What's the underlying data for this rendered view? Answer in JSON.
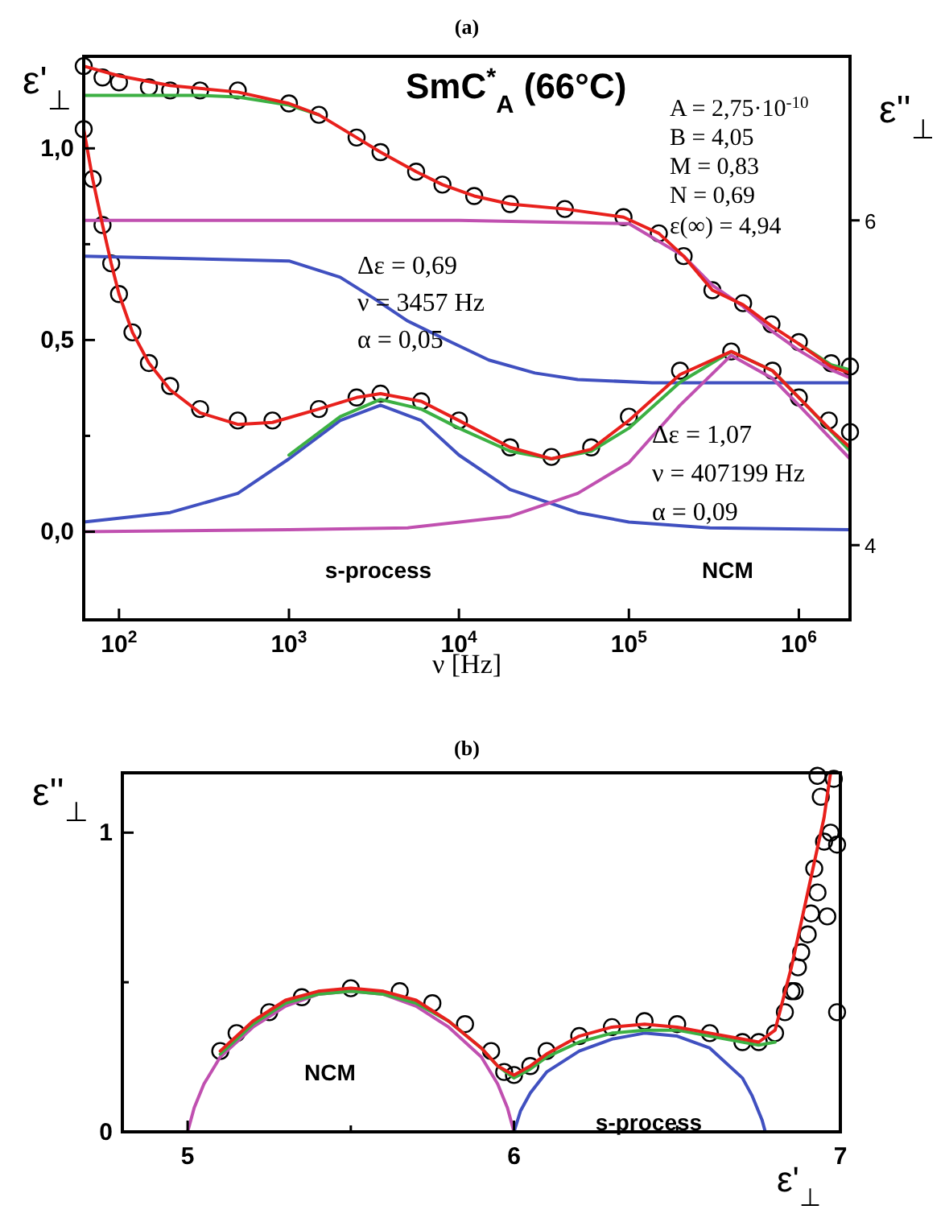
{
  "chart_data": [
    {
      "type": "line",
      "title": "(a)",
      "xlabel": "ν [Hz]",
      "ylabel": "ε'$_{⊥}$",
      "y2label": "ε''$_{⊥}$",
      "log": "x",
      "xlim": [
        62,
        2000000
      ],
      "xticks": [
        {
          "value": 100,
          "label": "10$^{2}$"
        },
        {
          "value": 1000,
          "label": "10$^{3}$"
        },
        {
          "value": 10000,
          "label": "10$^{4}$"
        },
        {
          "value": 100000,
          "label": "10$^{5}$"
        },
        {
          "value": 1000000,
          "label": "10$^{6}$"
        }
      ],
      "ylim": [
        -0.23,
        1.24
      ],
      "yticks": [
        {
          "value": 0,
          "label": "0,0"
        },
        {
          "value": 0.25,
          "label": null
        },
        {
          "value": 0.5,
          "label": "0,5"
        },
        {
          "value": 0.75,
          "label": null
        },
        {
          "value": 1,
          "label": "1,0"
        }
      ],
      "y2lim": [
        3.54,
        7.01
      ],
      "y2ticks": [
        4,
        6
      ],
      "annotations": [
        "SmC$^{*}$$_{A}$ (66°C)",
        "A = 2,75·10$^{-10}$",
        "B = 4,05",
        "M = 0,83",
        "N = 0,69",
        "ε(∞) = 4,94",
        "Δε = 0,69",
        "ν = 3457 Hz",
        "α = 0,05",
        "Δε = 1,07",
        "ν = 407199 Hz",
        "α = 0,09",
        "s-process",
        "NCM"
      ],
      "series": [
        {
          "type": "scatter",
          "marker": "circle",
          "color": "#000000",
          "axis": "y2",
          "x": [
            62,
            80,
            100,
            150,
            200,
            300,
            500,
            1000,
            1500,
            2500,
            3457,
            5600,
            8000,
            12300,
            20000,
            42000,
            93000,
            150000,
            210000,
            310000,
            470000,
            690000,
            1000000,
            1550000,
            2000000
          ],
          "values": [
            6.95,
            6.88,
            6.85,
            6.82,
            6.8,
            6.8,
            6.8,
            6.72,
            6.65,
            6.51,
            6.42,
            6.3,
            6.22,
            6.15,
            6.1,
            6.07,
            6.02,
            5.92,
            5.78,
            5.57,
            5.49,
            5.36,
            5.25,
            5.12,
            5.1
          ]
        },
        {
          "type": "scatter",
          "marker": "circle",
          "color": "#000000",
          "x": [
            62,
            70,
            80,
            90,
            100,
            120,
            150,
            200,
            300,
            500,
            800,
            1500,
            2500,
            3457,
            6000,
            10000,
            20000,
            35000,
            60000,
            100000,
            200000,
            400000,
            700000,
            1000000,
            1500000,
            2000000
          ],
          "values": [
            1.05,
            0.92,
            0.8,
            0.7,
            0.62,
            0.52,
            0.44,
            0.38,
            0.32,
            0.29,
            0.29,
            0.32,
            0.35,
            0.36,
            0.34,
            0.29,
            0.22,
            0.195,
            0.22,
            0.3,
            0.42,
            0.47,
            0.42,
            0.35,
            0.29,
            0.26
          ]
        },
        {
          "color": "#4050c0",
          "axis": "y2",
          "x": [
            62,
            1000,
            2000,
            3160,
            5000,
            9000,
            15000,
            28000,
            50000,
            137000,
            2000000
          ],
          "values": [
            5.78,
            5.75,
            5.65,
            5.52,
            5.38,
            5.25,
            5.14,
            5.06,
            5.02,
            5.0,
            5.0
          ]
        },
        {
          "color": "#c050b0",
          "axis": "y2",
          "x": [
            62,
            10000,
            100000,
            210000,
            310000,
            470000,
            690000,
            1000000,
            1550000,
            2000000
          ],
          "values": [
            6.0,
            6.0,
            5.98,
            5.78,
            5.6,
            5.47,
            5.32,
            5.2,
            5.08,
            5.03
          ]
        },
        {
          "color": "#3cb043",
          "axis": "y2",
          "x": [
            62,
            300,
            500,
            1000,
            1500,
            2500,
            3457,
            5600,
            8000,
            12300,
            20000,
            42000,
            93000,
            150000,
            210000,
            310000,
            470000,
            690000,
            1000000,
            1550000,
            2000000
          ],
          "values": [
            6.77,
            6.77,
            6.76,
            6.71,
            6.65,
            null,
            null,
            null,
            null,
            null,
            null,
            null,
            null,
            null,
            null,
            null,
            null,
            null,
            5.24,
            5.11,
            5.08
          ]
        },
        {
          "color": "#e8201c",
          "axis": "y2",
          "x": [
            62,
            100,
            200,
            500,
            1000,
            1500,
            2500,
            3457,
            5600,
            8000,
            12300,
            20000,
            42000,
            93000,
            150000,
            210000,
            310000,
            470000,
            690000,
            1000000,
            1550000,
            2000000
          ],
          "values": [
            6.95,
            6.89,
            6.83,
            6.79,
            6.72,
            6.65,
            6.51,
            6.42,
            6.3,
            6.22,
            6.15,
            6.1,
            6.07,
            6.02,
            5.92,
            5.78,
            5.57,
            5.48,
            5.35,
            5.24,
            5.1,
            5.06
          ]
        },
        {
          "color": "#4050c0",
          "x": [
            62,
            200,
            500,
            1000,
            2000,
            3457,
            6000,
            10000,
            20000,
            50000,
            100000,
            300000,
            2000000
          ],
          "values": [
            0.025,
            0.05,
            0.1,
            0.19,
            0.29,
            0.33,
            0.29,
            0.2,
            0.11,
            0.05,
            0.025,
            0.01,
            0.005
          ]
        },
        {
          "color": "#c050b0",
          "x": [
            62,
            1000,
            5000,
            20000,
            50000,
            100000,
            200000,
            400000,
            700000,
            1000000,
            2000000
          ],
          "values": [
            0,
            0.005,
            0.01,
            0.04,
            0.1,
            0.18,
            0.33,
            0.46,
            0.4,
            0.33,
            0.19
          ]
        },
        {
          "color": "#3cb043",
          "x": [
            1000,
            2000,
            3457,
            6000,
            10000,
            20000,
            35000,
            60000,
            100000,
            200000,
            400000,
            700000,
            1000000,
            2000000
          ],
          "values": [
            0.2,
            0.3,
            0.345,
            0.32,
            0.27,
            0.21,
            0.19,
            0.21,
            0.27,
            0.39,
            0.47,
            0.42,
            0.35,
            0.21
          ]
        },
        {
          "color": "#e8201c",
          "x": [
            62,
            70,
            80,
            90,
            100,
            120,
            150,
            200,
            300,
            500,
            800,
            1500,
            2500,
            3457,
            6000,
            10000,
            20000,
            35000,
            60000,
            100000,
            200000,
            400000,
            700000,
            1000000,
            1500000,
            2000000
          ],
          "values": [
            1.05,
            0.92,
            0.8,
            0.7,
            0.62,
            0.52,
            0.44,
            0.37,
            0.31,
            0.28,
            0.285,
            0.32,
            0.35,
            0.36,
            0.34,
            0.29,
            0.22,
            0.19,
            0.215,
            0.29,
            0.41,
            0.47,
            0.42,
            0.35,
            0.27,
            0.22
          ]
        }
      ]
    },
    {
      "type": "line",
      "title": "(b)",
      "xlabel": "ε'$_{⊥}$",
      "ylabel": "ε''$_{⊥}$",
      "xlim": [
        4.8,
        7
      ],
      "xticks": [
        5,
        {
          "value": 5.5,
          "label": null
        },
        6,
        {
          "value": 6.5,
          "label": null
        },
        7
      ],
      "ylim": [
        0,
        1.2
      ],
      "yticks": [
        0,
        {
          "value": 0.5,
          "label": null
        },
        1
      ],
      "annotations": [
        "NCM",
        "s-process"
      ],
      "series": [
        {
          "type": "scatter",
          "marker": "circle",
          "color": "#000000",
          "x": [
            5.1,
            5.15,
            5.25,
            5.35,
            5.5,
            5.65,
            5.75,
            5.85,
            5.93,
            5.97,
            6.0,
            6.05,
            6.1,
            6.2,
            6.3,
            6.4,
            6.5,
            6.6,
            6.7,
            6.75,
            6.8,
            6.83,
            6.85,
            6.87,
            6.88,
            6.9,
            6.91,
            6.93,
            6.92,
            6.95,
            6.97,
            6.94,
            6.98,
            6.93,
            6.99,
            6.86,
            6.99,
            6.96
          ],
          "values": [
            0.27,
            0.33,
            0.4,
            0.45,
            0.48,
            0.47,
            0.43,
            0.36,
            0.27,
            0.2,
            0.19,
            0.22,
            0.27,
            0.32,
            0.35,
            0.37,
            0.36,
            0.33,
            0.3,
            0.3,
            0.33,
            0.4,
            0.47,
            0.55,
            0.6,
            0.66,
            0.73,
            0.8,
            0.88,
            0.97,
            1.0,
            1.12,
            1.18,
            1.19,
            0.4,
            0.47,
            0.96,
            0.72
          ]
        },
        {
          "color": "#c050b0",
          "x": [
            5.0,
            5.02,
            5.05,
            5.1,
            5.2,
            5.3,
            5.4,
            5.5,
            5.6,
            5.7,
            5.8,
            5.9,
            5.95,
            5.98,
            6.0
          ],
          "values": [
            0,
            0.08,
            0.16,
            0.25,
            0.35,
            0.42,
            0.46,
            0.47,
            0.46,
            0.42,
            0.35,
            0.25,
            0.16,
            0.08,
            0
          ]
        },
        {
          "color": "#4050c0",
          "x": [
            6.0,
            6.02,
            6.05,
            6.1,
            6.2,
            6.3,
            6.4,
            6.5,
            6.6,
            6.7,
            6.73,
            6.76,
            6.77
          ],
          "values": [
            0,
            0.07,
            0.13,
            0.2,
            0.27,
            0.31,
            0.33,
            0.32,
            0.28,
            0.18,
            0.12,
            0.04,
            0
          ]
        },
        {
          "color": "#3cb043",
          "x": [
            5.1,
            5.2,
            5.3,
            5.4,
            5.5,
            5.6,
            5.7,
            5.8,
            5.9,
            5.95,
            6.0,
            6.05,
            6.1,
            6.2,
            6.3,
            6.4,
            6.5,
            6.6,
            6.7,
            6.75,
            6.8
          ],
          "values": [
            0.26,
            0.36,
            0.43,
            0.46,
            0.47,
            0.46,
            0.43,
            0.37,
            0.28,
            0.22,
            0.18,
            0.21,
            0.25,
            0.3,
            0.33,
            0.34,
            0.34,
            0.32,
            0.3,
            0.29,
            0.3
          ]
        },
        {
          "color": "#e8201c",
          "x": [
            5.1,
            5.2,
            5.3,
            5.4,
            5.5,
            5.6,
            5.7,
            5.8,
            5.9,
            5.95,
            6.0,
            6.05,
            6.1,
            6.2,
            6.3,
            6.4,
            6.5,
            6.6,
            6.7,
            6.75,
            6.8,
            6.85,
            6.9,
            6.95,
            6.97
          ],
          "values": [
            0.27,
            0.37,
            0.44,
            0.47,
            0.48,
            0.47,
            0.44,
            0.37,
            0.28,
            0.22,
            0.19,
            0.22,
            0.26,
            0.32,
            0.35,
            0.36,
            0.35,
            0.33,
            0.31,
            0.3,
            0.34,
            0.55,
            0.8,
            1.05,
            1.2
          ]
        }
      ]
    }
  ]
}
